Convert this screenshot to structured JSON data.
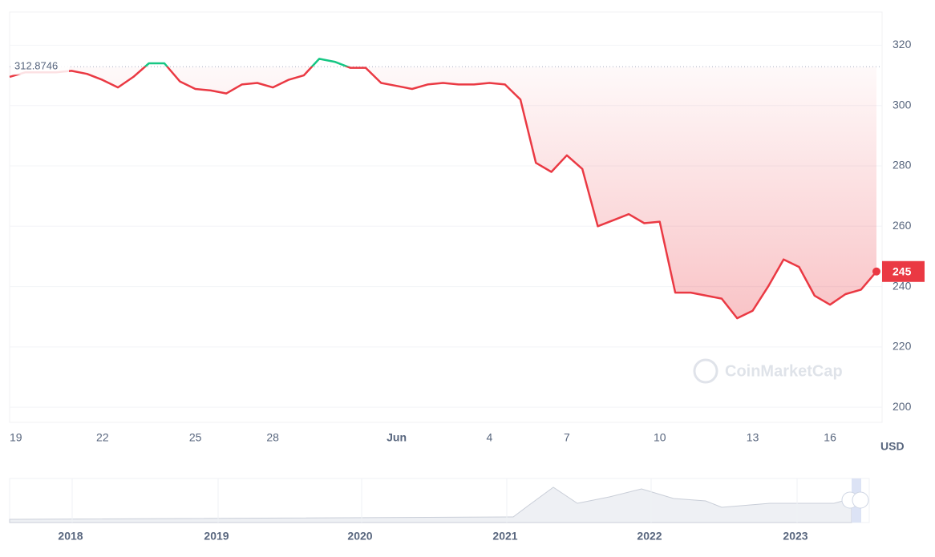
{
  "chart_data": {
    "type": "line",
    "reference": {
      "value": 312.8746,
      "label": "312.8746"
    },
    "current": {
      "value": 245,
      "label": "245"
    },
    "unit": "USD",
    "watermark": "CoinMarketCap",
    "categories": [
      "19",
      null,
      null,
      null,
      null,
      null,
      "22",
      null,
      null,
      null,
      null,
      null,
      "25",
      null,
      null,
      null,
      null,
      "28",
      null,
      null,
      null,
      null,
      null,
      null,
      null,
      "Jun",
      null,
      null,
      null,
      null,
      null,
      "4",
      null,
      null,
      null,
      null,
      "7",
      null,
      null,
      null,
      null,
      null,
      "10",
      null,
      null,
      null,
      null,
      null,
      "13",
      null,
      null,
      null,
      null,
      "16",
      null,
      null,
      null
    ],
    "series": [
      {
        "name": null,
        "up_color": "#16c784",
        "down_color": "#ea3943",
        "values": [
          309.5,
          311,
          311,
          311,
          311.5,
          310.5,
          308.5,
          306,
          309.5,
          314,
          314,
          308,
          305.5,
          305,
          304,
          307,
          307.5,
          306,
          308.5,
          310,
          315.5,
          314.5,
          312.5,
          312.5,
          307.5,
          306.5,
          305.5,
          307,
          307.5,
          307,
          307,
          307.5,
          307,
          302,
          281,
          278,
          283.5,
          279,
          260,
          262,
          264,
          261,
          261.5,
          238,
          238,
          237,
          236,
          229.5,
          232,
          240,
          249,
          246.5,
          237,
          234,
          237.5,
          239,
          245
        ]
      }
    ],
    "ylim": [
      195,
      331
    ],
    "yticks": [
      200,
      220,
      240,
      260,
      280,
      300,
      320
    ],
    "grid": true,
    "navigator": {
      "labels": [
        "2018",
        "2019",
        "2020",
        "2021",
        "2022",
        "2023"
      ]
    }
  }
}
